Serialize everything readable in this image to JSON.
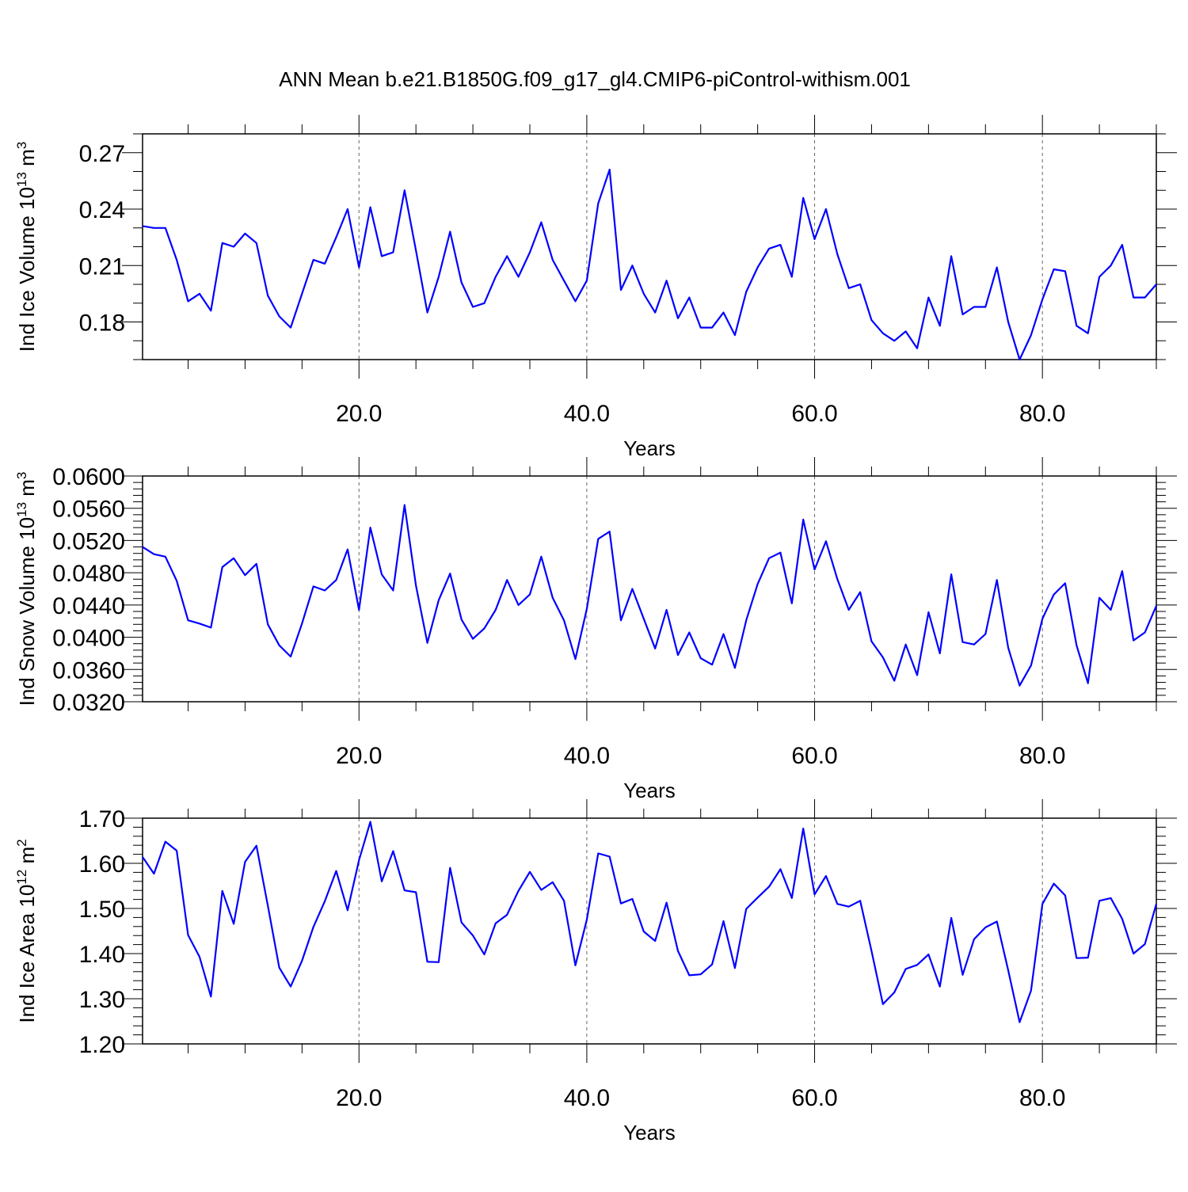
{
  "title": "ANN Mean b.e21.B1850G.f09_g17_gl4.CMIP6-piControl-withism.001",
  "chart_data": [
    {
      "type": "line",
      "title": "",
      "xlabel": "Years",
      "ylabel_main": "Ind Ice Volume 10",
      "ylabel_exp": "13",
      "ylabel_unit": " m",
      "ylabel_unit_exp": "3",
      "xlim": [
        1,
        90
      ],
      "ylim": [
        0.16,
        0.28
      ],
      "xticks": [
        20,
        40,
        60,
        80
      ],
      "xtick_labels": [
        "20.0",
        "40.0",
        "60.0",
        "80.0"
      ],
      "yticks": [
        0.18,
        0.21,
        0.24,
        0.27
      ],
      "ytick_labels": [
        "0.18",
        "0.21",
        "0.24",
        "0.27"
      ],
      "yminor_step": 0.01,
      "grid": "vertical-dashed",
      "line_color": "#0000ff",
      "series": [
        {
          "values": [
            0.231,
            0.23,
            0.23,
            0.213,
            0.191,
            0.195,
            0.186,
            0.222,
            0.22,
            0.227,
            0.222,
            0.194,
            0.183,
            0.177,
            0.195,
            0.213,
            0.211,
            0.225,
            0.24,
            0.209,
            0.241,
            0.215,
            0.217,
            0.25,
            0.218,
            0.185,
            0.204,
            0.228,
            0.201,
            0.188,
            0.19,
            0.204,
            0.215,
            0.204,
            0.217,
            0.233,
            0.213,
            0.202,
            0.191,
            0.202,
            0.243,
            0.261,
            0.197,
            0.21,
            0.195,
            0.185,
            0.202,
            0.182,
            0.193,
            0.177,
            0.177,
            0.185,
            0.173,
            0.196,
            0.209,
            0.219,
            0.221,
            0.204,
            0.246,
            0.224,
            0.24,
            0.216,
            0.198,
            0.2,
            0.181,
            0.174,
            0.17,
            0.175,
            0.166,
            0.193,
            0.178,
            0.215,
            0.184,
            0.188,
            0.188,
            0.209,
            0.18,
            0.16,
            0.173,
            0.192,
            0.208,
            0.207,
            0.178,
            0.174,
            0.204,
            0.21,
            0.221,
            0.193,
            0.193,
            0.2
          ]
        }
      ]
    },
    {
      "type": "line",
      "title": "",
      "xlabel": "Years",
      "ylabel_main": "Ind Snow Volume 10",
      "ylabel_exp": "13",
      "ylabel_unit": " m",
      "ylabel_unit_exp": "3",
      "xlim": [
        1,
        90
      ],
      "ylim": [
        0.032,
        0.06
      ],
      "xticks": [
        20,
        40,
        60,
        80
      ],
      "xtick_labels": [
        "20.0",
        "40.0",
        "60.0",
        "80.0"
      ],
      "yticks": [
        0.032,
        0.036,
        0.04,
        0.044,
        0.048,
        0.052,
        0.056,
        0.06
      ],
      "ytick_labels": [
        "0.0320",
        "0.0360",
        "0.0400",
        "0.0440",
        "0.0480",
        "0.0520",
        "0.0560",
        "0.0600"
      ],
      "yminor_step": 0.0008,
      "grid": "vertical-dashed",
      "line_color": "#0000ff",
      "series": [
        {
          "values": [
            0.0512,
            0.0503,
            0.05,
            0.047,
            0.0421,
            0.0417,
            0.0412,
            0.0487,
            0.0498,
            0.0477,
            0.0491,
            0.0416,
            0.039,
            0.0376,
            0.0417,
            0.0463,
            0.0458,
            0.0471,
            0.0509,
            0.0434,
            0.0536,
            0.0478,
            0.0458,
            0.0564,
            0.0464,
            0.0393,
            0.0446,
            0.0479,
            0.0422,
            0.0398,
            0.0411,
            0.0434,
            0.0471,
            0.044,
            0.0453,
            0.05,
            0.0449,
            0.0421,
            0.0373,
            0.0435,
            0.0522,
            0.0531,
            0.0421,
            0.046,
            0.0423,
            0.0386,
            0.0434,
            0.0378,
            0.0406,
            0.0374,
            0.0366,
            0.0404,
            0.0362,
            0.0421,
            0.0466,
            0.0498,
            0.0505,
            0.0442,
            0.0546,
            0.0484,
            0.0519,
            0.0472,
            0.0434,
            0.0456,
            0.0395,
            0.0375,
            0.0346,
            0.0391,
            0.0353,
            0.0431,
            0.038,
            0.0478,
            0.0394,
            0.0391,
            0.0404,
            0.0471,
            0.0387,
            0.034,
            0.0365,
            0.0423,
            0.0453,
            0.0467,
            0.039,
            0.0343,
            0.0449,
            0.0434,
            0.0482,
            0.0396,
            0.0406,
            0.0439
          ]
        }
      ]
    },
    {
      "type": "line",
      "title": "",
      "xlabel": "Years",
      "ylabel_main": "Ind Ice Area 10",
      "ylabel_exp": "12",
      "ylabel_unit": " m",
      "ylabel_unit_exp": "2",
      "xlim": [
        1,
        90
      ],
      "ylim": [
        1.2,
        1.7
      ],
      "xticks": [
        20,
        40,
        60,
        80
      ],
      "xtick_labels": [
        "20.0",
        "40.0",
        "60.0",
        "80.0"
      ],
      "yticks": [
        1.2,
        1.3,
        1.4,
        1.5,
        1.6,
        1.7
      ],
      "ytick_labels": [
        "1.20",
        "1.30",
        "1.40",
        "1.50",
        "1.60",
        "1.70"
      ],
      "yminor_step": 0.02,
      "grid": "vertical-dashed",
      "line_color": "#0000ff",
      "series": [
        {
          "values": [
            1.614,
            1.577,
            1.648,
            1.628,
            1.441,
            1.393,
            1.305,
            1.539,
            1.466,
            1.603,
            1.639,
            1.506,
            1.369,
            1.327,
            1.384,
            1.459,
            1.516,
            1.583,
            1.496,
            1.607,
            1.692,
            1.56,
            1.627,
            1.54,
            1.536,
            1.382,
            1.381,
            1.59,
            1.469,
            1.44,
            1.398,
            1.467,
            1.486,
            1.539,
            1.581,
            1.541,
            1.558,
            1.517,
            1.374,
            1.475,
            1.622,
            1.615,
            1.511,
            1.521,
            1.449,
            1.428,
            1.513,
            1.406,
            1.352,
            1.354,
            1.376,
            1.472,
            1.368,
            1.499,
            1.524,
            1.548,
            1.587,
            1.523,
            1.677,
            1.531,
            1.572,
            1.51,
            1.504,
            1.517,
            1.406,
            1.288,
            1.314,
            1.366,
            1.375,
            1.398,
            1.327,
            1.479,
            1.353,
            1.432,
            1.458,
            1.471,
            1.363,
            1.248,
            1.318,
            1.51,
            1.555,
            1.529,
            1.39,
            1.391,
            1.517,
            1.523,
            1.477,
            1.4,
            1.421,
            1.51
          ]
        }
      ]
    }
  ]
}
